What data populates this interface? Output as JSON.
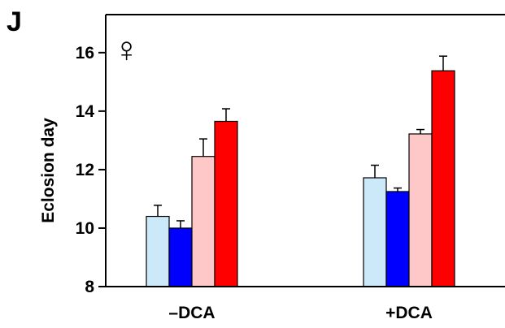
{
  "panel_label": "J",
  "symbol": "♀",
  "chart_data": {
    "type": "bar",
    "title": "",
    "xlabel": "",
    "ylabel": "Eclosion day",
    "ylim": [
      8,
      17.3
    ],
    "yticks": [
      8,
      10,
      12,
      14,
      16
    ],
    "categories": [
      "–DCA",
      "+DCA"
    ],
    "grid": false,
    "legend": "none",
    "series": [
      {
        "color": "#cce9fa",
        "values": [
          10.4,
          11.72
        ],
        "errors": [
          0.38,
          0.43
        ]
      },
      {
        "color": "#0000ff",
        "values": [
          10.0,
          11.25
        ],
        "errors": [
          0.25,
          0.12
        ]
      },
      {
        "color": "#ffc8c8",
        "values": [
          12.45,
          13.22
        ],
        "errors": [
          0.6,
          0.15
        ]
      },
      {
        "color": "#ff0000",
        "values": [
          13.65,
          15.38
        ],
        "errors": [
          0.43,
          0.5
        ]
      }
    ]
  }
}
